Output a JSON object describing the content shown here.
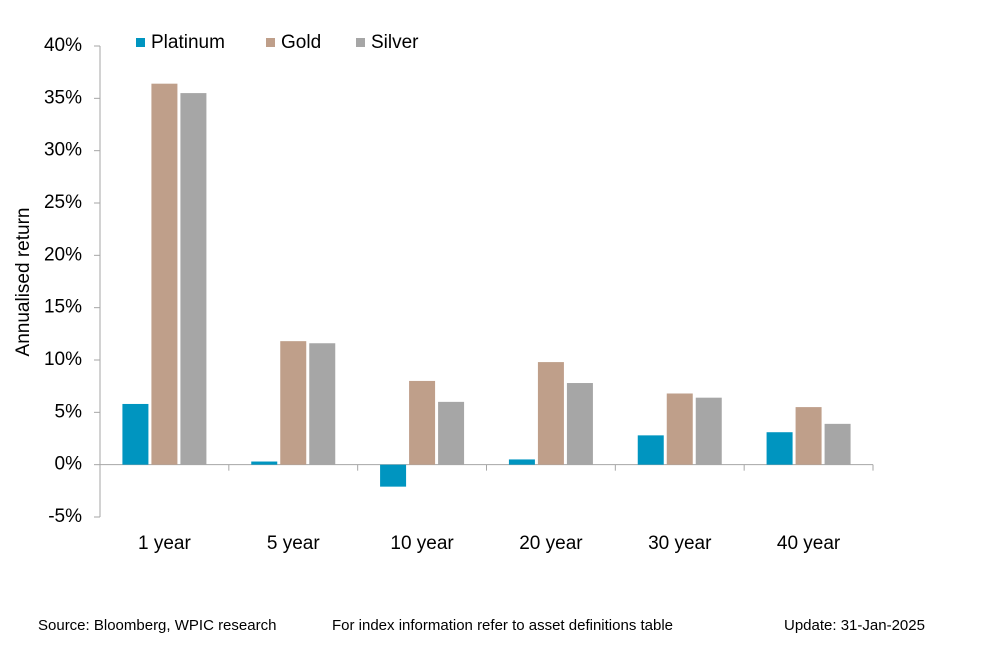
{
  "chart_data": {
    "type": "bar",
    "y_label": "Annualised return",
    "categories": [
      "1 year",
      "5 year",
      "10 year",
      "20 year",
      "30 year",
      "40 year"
    ],
    "series": [
      {
        "name": "Platinum",
        "color": "#0095c0",
        "values": [
          5.8,
          0.3,
          -2.1,
          0.5,
          2.8,
          3.1
        ]
      },
      {
        "name": "Gold",
        "color": "#bf9f8a",
        "values": [
          36.4,
          11.8,
          8.0,
          9.8,
          6.8,
          5.5
        ]
      },
      {
        "name": "Silver",
        "color": "#a6a6a6",
        "values": [
          35.5,
          11.6,
          6.0,
          7.8,
          6.4,
          3.9
        ]
      }
    ],
    "ylim": [
      -5,
      40
    ],
    "yticks": [
      {
        "value": -5,
        "label": "-5%"
      },
      {
        "value": 0,
        "label": "0%"
      },
      {
        "value": 5,
        "label": "5%"
      },
      {
        "value": 10,
        "label": "10%"
      },
      {
        "value": 15,
        "label": "15%"
      },
      {
        "value": 20,
        "label": "20%"
      },
      {
        "value": 25,
        "label": "25%"
      },
      {
        "value": 30,
        "label": "30%"
      },
      {
        "value": 35,
        "label": "35%"
      },
      {
        "value": 40,
        "label": "40%"
      }
    ],
    "legend": "top-left",
    "source": "Source: Bloomberg, WPIC research",
    "note": "For index information refer to asset definitions table",
    "update": "Update: 31-Jan-2025"
  }
}
